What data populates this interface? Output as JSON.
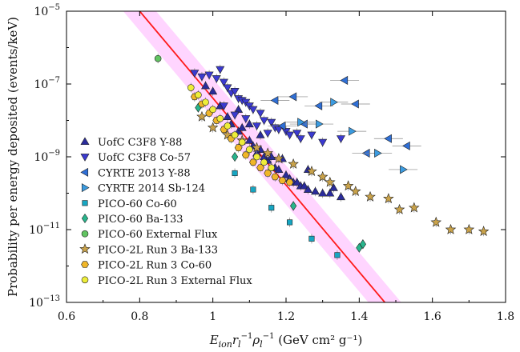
{
  "chart_data": {
    "type": "scatter",
    "xlabel": {
      "base": "E",
      "sub": "ion",
      "rest": "r",
      "sub2": "l",
      "sup": "−1",
      "rho": "ρ",
      "sub3": "l",
      "sup2": "−1",
      "units": "(GeV cm² g⁻¹)"
    },
    "ylabel": "Probability per energy deposited (events/keV)",
    "xlim": [
      0.6,
      1.8
    ],
    "ylim_exp": [
      -13,
      -5
    ],
    "y_scale": "log",
    "x_ticks": [
      0.6,
      0.8,
      1.0,
      1.2,
      1.4,
      1.6,
      1.8
    ],
    "x_tick_labels": [
      "0.6",
      "0.8",
      "1",
      "1.2",
      "1.4",
      "1.6",
      "1.8"
    ],
    "y_ticks_exp": [
      -13,
      -11,
      -9,
      -7,
      -5
    ],
    "y_tick_labels": [
      {
        "base": "10",
        "exp": "−13"
      },
      {
        "base": "10",
        "exp": "−11"
      },
      {
        "base": "10",
        "exp": "−9"
      },
      {
        "base": "10",
        "exp": "−7"
      },
      {
        "base": "10",
        "exp": "−5"
      }
    ],
    "legend_position": "left",
    "fit_line": {
      "x": [
        0.8,
        1.47
      ],
      "logy": [
        -5.0,
        -13.0
      ],
      "color": "#ff1a1a",
      "band_color": "#ff88ff",
      "band_half_width_x": 0.045
    },
    "series": [
      {
        "name": "UofC C3F8 Y-88",
        "marker": "triangle-up",
        "color": "#2a2c9b",
        "points": [
          [
            0.98,
            -7.05
          ],
          [
            1.0,
            -7.2
          ],
          [
            1.02,
            -7.6
          ],
          [
            1.04,
            -7.9
          ],
          [
            1.05,
            -8.1
          ],
          [
            1.07,
            -8.3
          ],
          [
            1.08,
            -8.2
          ],
          [
            1.1,
            -8.55
          ],
          [
            1.11,
            -8.7
          ],
          [
            1.12,
            -8.9
          ],
          [
            1.13,
            -8.8
          ],
          [
            1.14,
            -9.0
          ],
          [
            1.15,
            -9.1
          ],
          [
            1.16,
            -9.0
          ],
          [
            1.17,
            -9.3
          ],
          [
            1.18,
            -9.35
          ],
          [
            1.2,
            -9.5
          ],
          [
            1.21,
            -9.6
          ],
          [
            1.22,
            -9.7
          ],
          [
            1.23,
            -9.7
          ],
          [
            1.24,
            -9.8
          ],
          [
            1.25,
            -9.8
          ],
          [
            1.26,
            -9.9
          ],
          [
            1.28,
            -9.95
          ],
          [
            1.3,
            -10.0
          ],
          [
            1.32,
            -10.0
          ],
          [
            1.33,
            -9.85
          ],
          [
            1.35,
            -10.1
          ],
          [
            1.07,
            -7.7
          ],
          [
            1.1,
            -8.1
          ],
          [
            1.13,
            -8.4
          ],
          [
            1.19,
            -9.05
          ],
          [
            1.26,
            -9.35
          ]
        ]
      },
      {
        "name": "UofC C3F8 Co-57",
        "marker": "triangle-down",
        "color": "#3b3ad0",
        "points": [
          [
            0.95,
            -6.7
          ],
          [
            0.97,
            -6.8
          ],
          [
            0.99,
            -6.75
          ],
          [
            1.01,
            -6.85
          ],
          [
            1.02,
            -6.6
          ],
          [
            1.03,
            -6.95
          ],
          [
            1.04,
            -7.1
          ],
          [
            1.05,
            -7.25
          ],
          [
            1.06,
            -7.2
          ],
          [
            1.07,
            -7.4
          ],
          [
            1.08,
            -7.45
          ],
          [
            1.09,
            -7.5
          ],
          [
            1.1,
            -7.6
          ],
          [
            1.11,
            -7.7
          ],
          [
            1.13,
            -7.8
          ],
          [
            1.14,
            -8.0
          ],
          [
            1.16,
            -8.05
          ],
          [
            1.17,
            -8.2
          ],
          [
            1.18,
            -8.25
          ],
          [
            1.2,
            -8.3
          ],
          [
            1.21,
            -8.4
          ],
          [
            1.23,
            -8.35
          ],
          [
            1.24,
            -8.5
          ],
          [
            1.27,
            -8.4
          ],
          [
            1.3,
            -8.6
          ],
          [
            1.35,
            -8.5
          ],
          [
            1.03,
            -7.6
          ],
          [
            1.06,
            -7.85
          ],
          [
            1.09,
            -7.95
          ],
          [
            1.12,
            -8.15
          ],
          [
            1.15,
            -8.35
          ]
        ]
      },
      {
        "name": "CYRTE 2013 Y-88",
        "marker": "triangle-left",
        "color": "#2f6fd6",
        "points": [
          [
            1.36,
            -6.9
          ],
          [
            1.22,
            -7.35
          ],
          [
            1.29,
            -7.6
          ],
          [
            1.17,
            -7.45
          ],
          [
            1.39,
            -7.55
          ],
          [
            1.48,
            -8.5
          ],
          [
            1.53,
            -8.7
          ],
          [
            1.42,
            -8.9
          ],
          [
            1.19,
            -8.15
          ],
          [
            1.25,
            -8.1
          ]
        ]
      },
      {
        "name": "CYRTE 2014 Sb-124",
        "marker": "triangle-right",
        "color": "#3b9be0",
        "points": [
          [
            1.29,
            -8.1
          ],
          [
            1.38,
            -8.3
          ],
          [
            1.52,
            -9.35
          ],
          [
            1.45,
            -8.9
          ],
          [
            1.33,
            -7.5
          ],
          [
            1.24,
            -8.05
          ]
        ]
      },
      {
        "name": "PICO-60 Co-60",
        "marker": "square",
        "color": "#17a6c2",
        "points": [
          [
            1.06,
            -9.45
          ],
          [
            1.11,
            -9.9
          ],
          [
            1.16,
            -10.4
          ],
          [
            1.21,
            -10.8
          ],
          [
            1.27,
            -11.25
          ],
          [
            1.34,
            -11.7
          ]
        ]
      },
      {
        "name": "PICO-60 Ba-133",
        "marker": "diamond",
        "color": "#28b58c",
        "points": [
          [
            0.96,
            -7.65
          ],
          [
            1.06,
            -9.0
          ],
          [
            1.22,
            -10.35
          ],
          [
            1.4,
            -11.5
          ],
          [
            1.41,
            -11.4
          ]
        ]
      },
      {
        "name": "PICO-60 External Flux",
        "marker": "circle",
        "color": "#62c462",
        "points": [
          [
            0.85,
            -6.3
          ]
        ]
      },
      {
        "name": "PICO-2L Run 3 Ba-133",
        "marker": "star",
        "color": "#c9a24a",
        "points": [
          [
            1.43,
            -10.1
          ],
          [
            1.48,
            -10.15
          ],
          [
            1.51,
            -10.45
          ],
          [
            1.55,
            -10.4
          ],
          [
            1.61,
            -10.8
          ],
          [
            1.65,
            -11.0
          ],
          [
            1.7,
            -11.0
          ],
          [
            1.74,
            -11.05
          ],
          [
            1.37,
            -9.8
          ],
          [
            1.39,
            -9.95
          ],
          [
            1.32,
            -9.7
          ],
          [
            1.3,
            -9.55
          ],
          [
            1.27,
            -9.4
          ],
          [
            1.22,
            -9.2
          ],
          [
            1.18,
            -9.05
          ],
          [
            1.15,
            -8.9
          ],
          [
            1.12,
            -8.75
          ],
          [
            1.08,
            -8.55
          ],
          [
            1.04,
            -8.4
          ],
          [
            1.0,
            -8.2
          ],
          [
            0.97,
            -7.9
          ]
        ]
      },
      {
        "name": "PICO-2L Run 3 Co-60",
        "marker": "hexagon",
        "color": "#f0b629",
        "points": [
          [
            0.95,
            -7.35
          ],
          [
            0.97,
            -7.55
          ],
          [
            0.99,
            -7.8
          ],
          [
            1.01,
            -8.0
          ],
          [
            1.03,
            -8.25
          ],
          [
            1.05,
            -8.5
          ],
          [
            1.07,
            -8.75
          ],
          [
            1.09,
            -8.95
          ],
          [
            1.11,
            -9.15
          ],
          [
            1.13,
            -9.3
          ],
          [
            1.15,
            -9.45
          ],
          [
            1.17,
            -9.55
          ],
          [
            1.19,
            -9.65
          ],
          [
            1.21,
            -9.7
          ]
        ]
      },
      {
        "name": "PICO-2L Run 3 External Flux",
        "marker": "circle",
        "color": "#eded3a",
        "points": [
          [
            0.94,
            -7.1
          ],
          [
            0.96,
            -7.3
          ],
          [
            0.98,
            -7.5
          ],
          [
            1.0,
            -7.7
          ],
          [
            1.02,
            -7.95
          ],
          [
            1.04,
            -8.15
          ],
          [
            1.06,
            -8.4
          ],
          [
            1.08,
            -8.6
          ],
          [
            1.1,
            -8.8
          ],
          [
            1.12,
            -9.0
          ],
          [
            1.14,
            -9.15
          ],
          [
            1.16,
            -9.3
          ]
        ]
      }
    ]
  }
}
